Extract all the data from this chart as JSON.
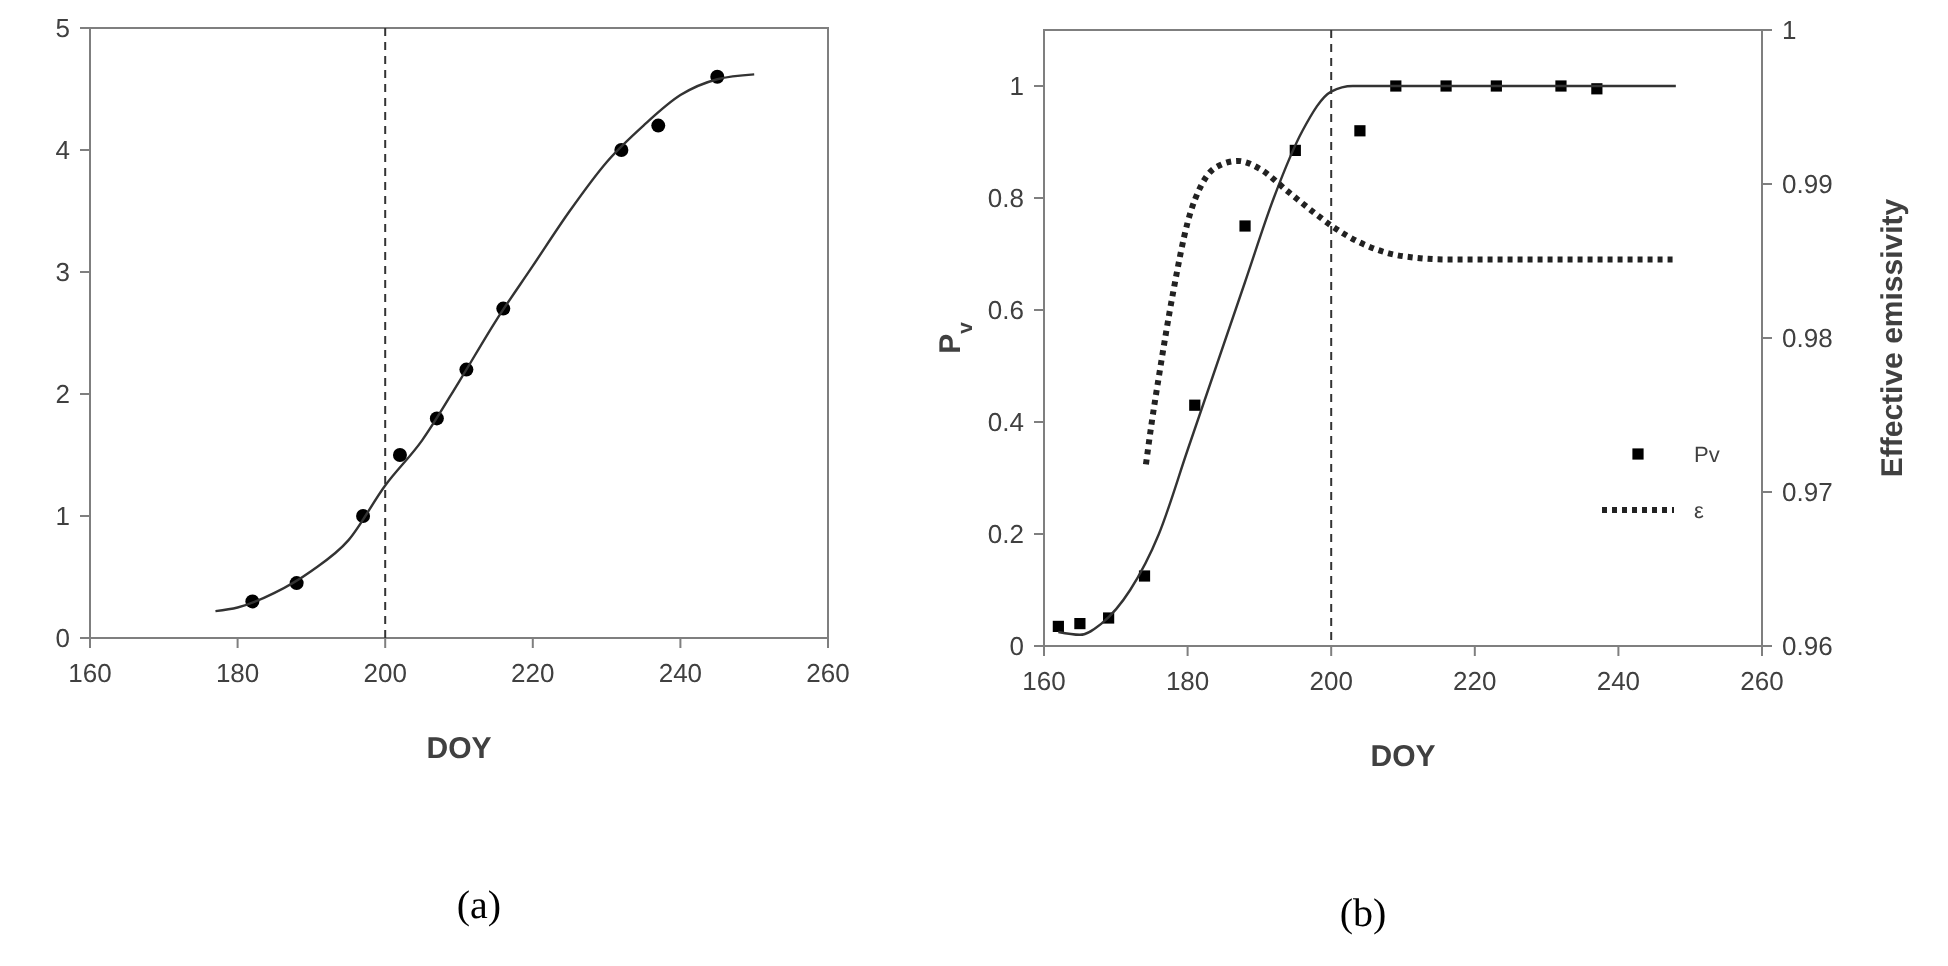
{
  "chart_data": [
    {
      "type": "scatter",
      "xlabel": "DOY",
      "annotations": [
        "(a)"
      ],
      "xlim": [
        160,
        260
      ],
      "xticks": [
        160,
        180,
        200,
        220,
        240,
        260
      ],
      "ylim": [
        0,
        5
      ],
      "yticks": [
        0,
        1,
        2,
        3,
        4,
        5
      ],
      "grid": false,
      "legend": false,
      "ref_lines": [
        {
          "axis": "x",
          "value": 200,
          "color": "#333333",
          "line_style": "dashed"
        }
      ],
      "series": [
        {
          "color": "#000000",
          "marker": "circle",
          "x": [
            182,
            188,
            197,
            202,
            207,
            211,
            216,
            232,
            237,
            245
          ],
          "values": [
            0.3,
            0.45,
            1.0,
            1.5,
            1.8,
            2.2,
            2.7,
            4.0,
            4.2,
            4.6
          ]
        },
        {
          "type": "line",
          "color": "#333333",
          "line_style": "solid",
          "marker": "none",
          "x": [
            177,
            180,
            185,
            190,
            195,
            200,
            205,
            210,
            215,
            220,
            225,
            230,
            235,
            240,
            245,
            250
          ],
          "values": [
            0.22,
            0.25,
            0.37,
            0.55,
            0.8,
            1.25,
            1.62,
            2.1,
            2.6,
            3.05,
            3.5,
            3.9,
            4.2,
            4.45,
            4.58,
            4.62
          ]
        }
      ]
    },
    {
      "type": "scatter",
      "xlabel": "DOY",
      "ylabel": "P$_{v}$",
      "y2label": "Effective emissivity",
      "annotations": [
        "(b)"
      ],
      "xlim": [
        160,
        260
      ],
      "xticks": [
        160,
        180,
        200,
        220,
        240,
        260
      ],
      "ylim": [
        0,
        1.1
      ],
      "yticks": [
        0,
        0.2,
        0.4,
        0.6,
        0.8,
        1
      ],
      "y2lim": [
        0.96,
        1
      ],
      "y2ticks": [
        0.96,
        0.97,
        0.98,
        0.99,
        1
      ],
      "grid": false,
      "legend": "bottom right",
      "ref_lines": [
        {
          "axis": "x",
          "value": 200,
          "color": "#333333",
          "line_style": "dashed"
        }
      ],
      "series": [
        {
          "name": "Pv",
          "color": "#000000",
          "marker": "square",
          "x": [
            162,
            165,
            169,
            174,
            181,
            188,
            195,
            204,
            209,
            216,
            223,
            232,
            237
          ],
          "values": [
            0.035,
            0.04,
            0.05,
            0.125,
            0.43,
            0.75,
            0.885,
            0.92,
            1.0,
            1.0,
            1.0,
            1.0,
            0.995
          ]
        },
        {
          "type": "line",
          "color": "#333333",
          "line_style": "solid",
          "marker": "none",
          "x": [
            162,
            165,
            168,
            172,
            176,
            180,
            184,
            188,
            192,
            196,
            200,
            203,
            210,
            248
          ],
          "values": [
            0.025,
            0.02,
            0.04,
            0.1,
            0.2,
            0.35,
            0.5,
            0.65,
            0.8,
            0.92,
            0.99,
            1.0,
            1.0,
            1.0
          ]
        },
        {
          "type": "line",
          "name": "ε",
          "axis": "y2",
          "color": "#222222",
          "line_style": "dotted",
          "marker": "none",
          "x": [
            174.2,
            175,
            176,
            178,
            180,
            182,
            184,
            187,
            190,
            194,
            198,
            200,
            204,
            208,
            212,
            216,
            248
          ],
          "values": [
            0.9718,
            0.9745,
            0.9775,
            0.983,
            0.9875,
            0.99,
            0.9911,
            0.9915,
            0.991,
            0.9895,
            0.988,
            0.9873,
            0.9862,
            0.9855,
            0.9852,
            0.9851,
            0.9851
          ]
        }
      ]
    }
  ]
}
